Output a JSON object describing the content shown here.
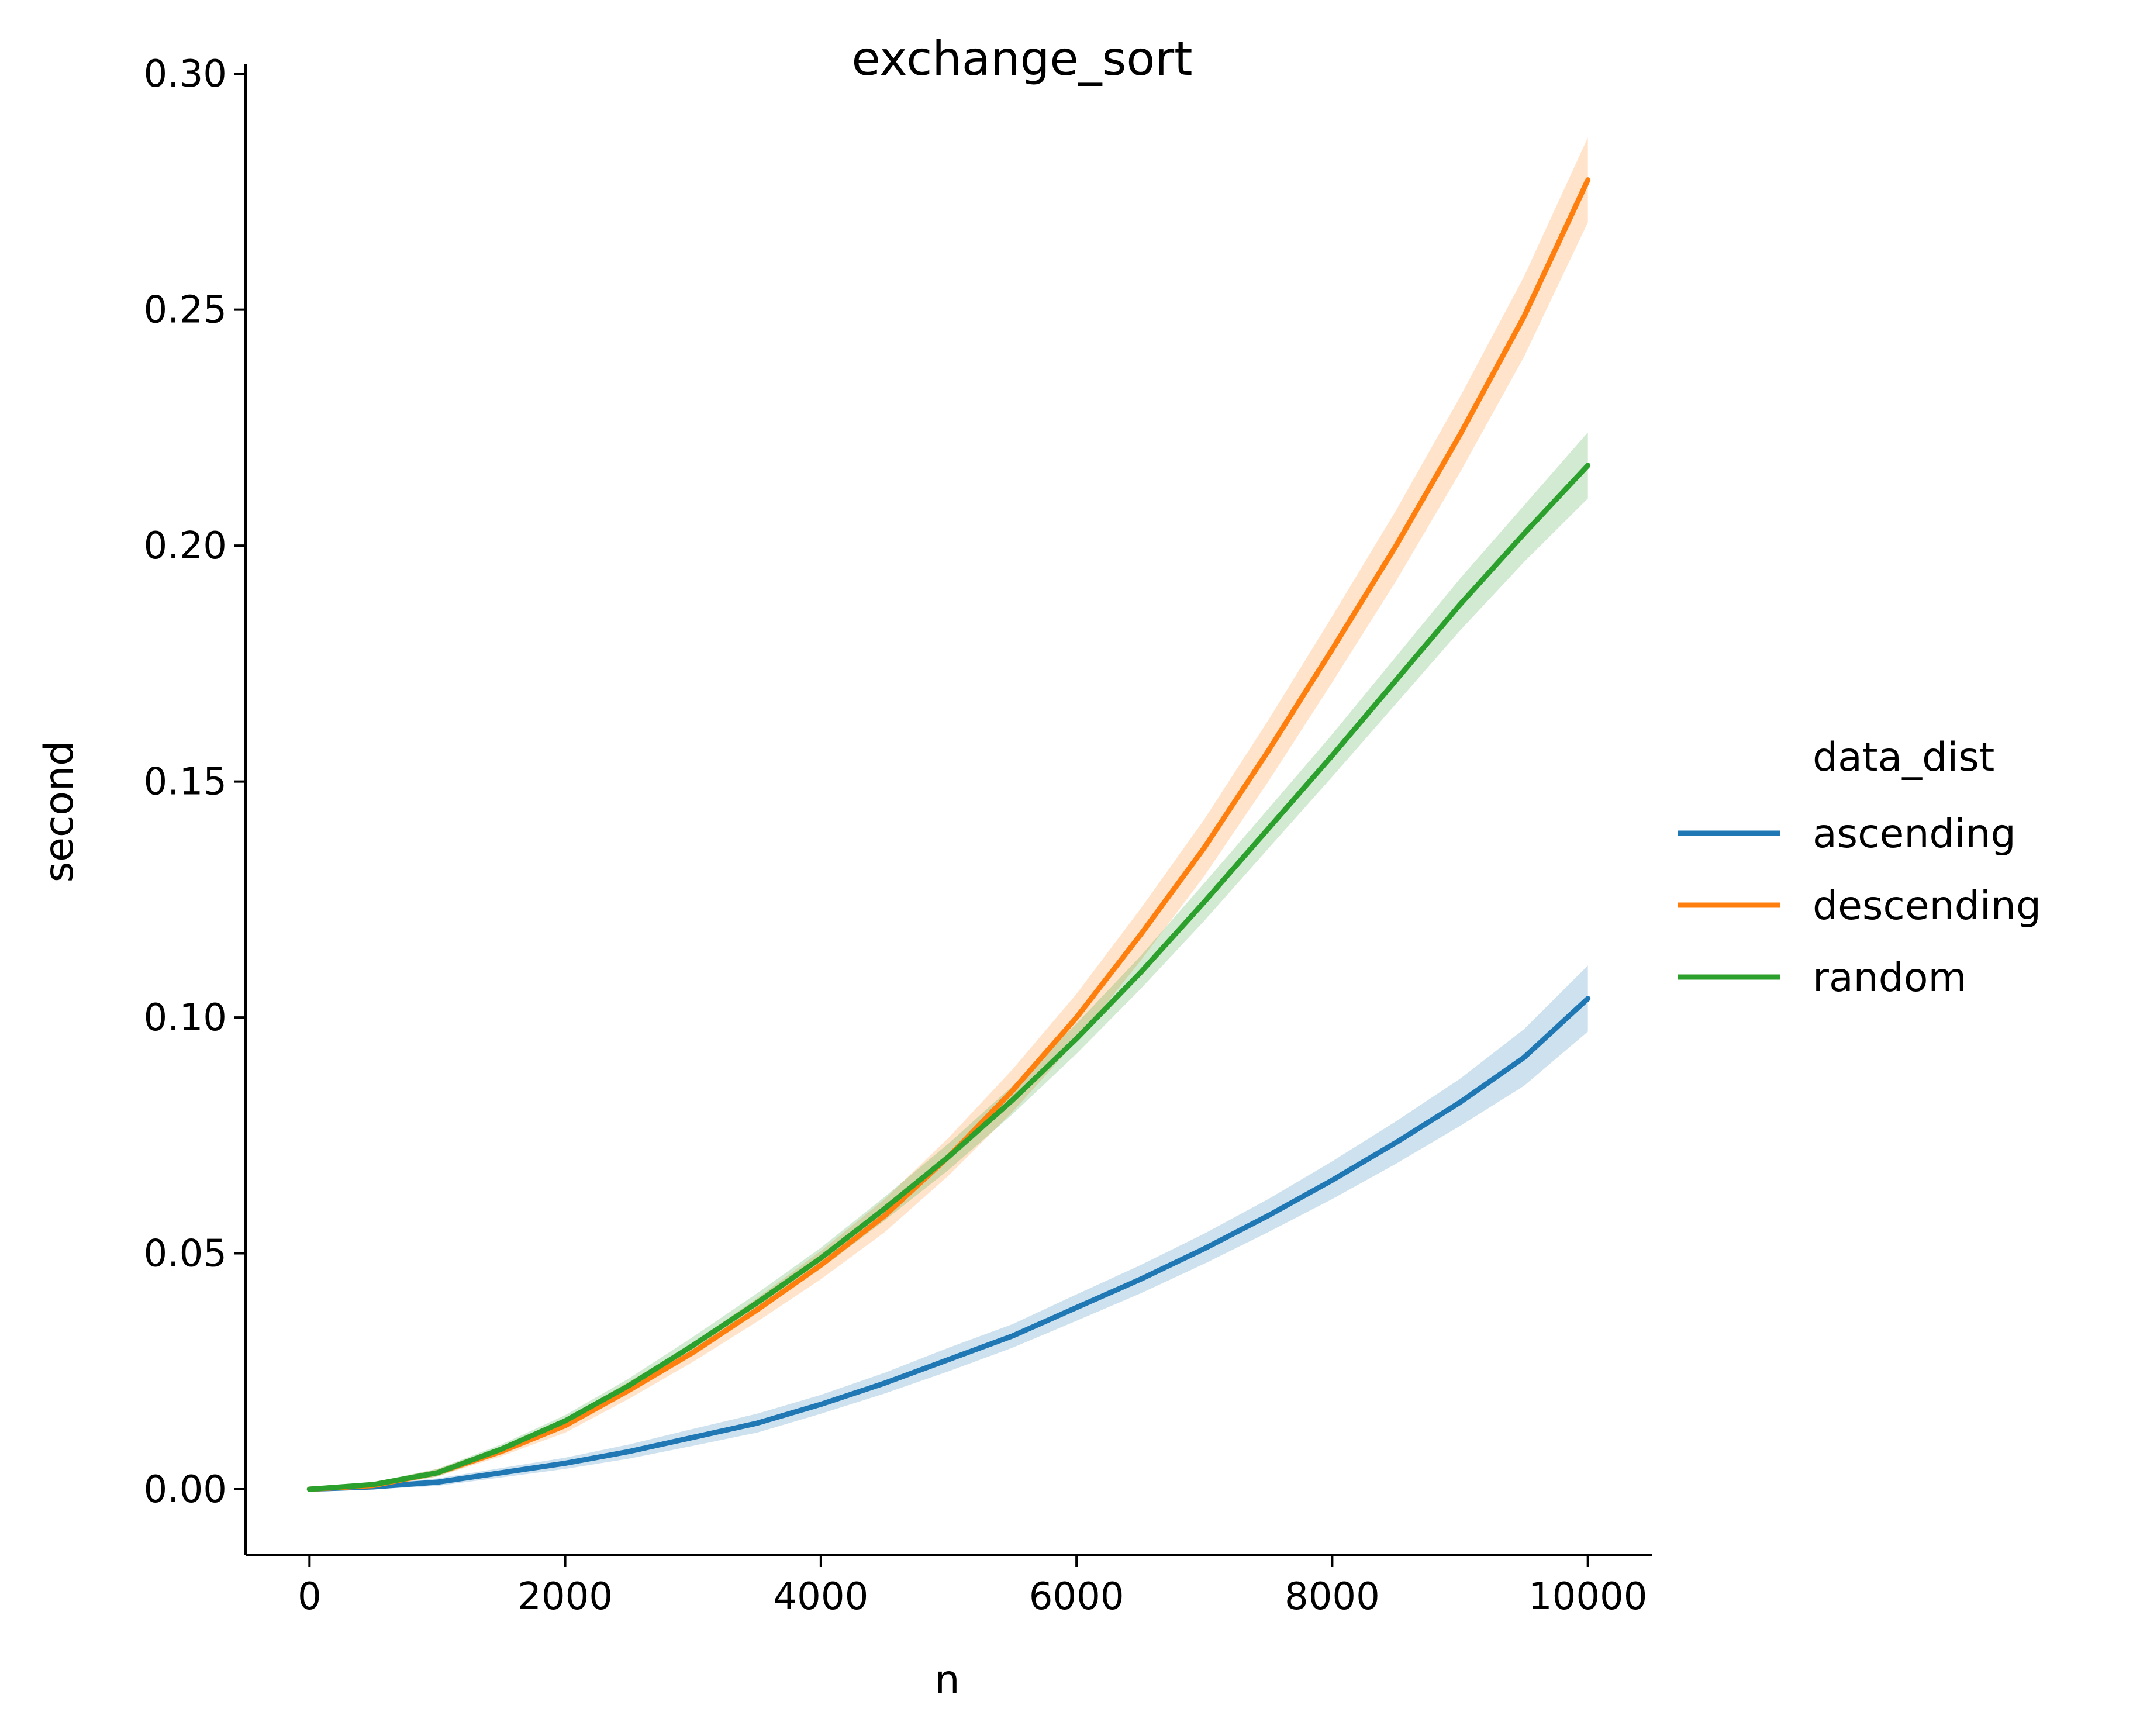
{
  "chart_data": {
    "type": "line",
    "title": "exchange_sort",
    "xlabel": "n",
    "ylabel": "second",
    "xlim": [
      -500,
      10500
    ],
    "ylim": [
      -0.014,
      0.302
    ],
    "xticks": [
      0,
      2000,
      4000,
      6000,
      8000,
      10000
    ],
    "xtick_labels": [
      "0",
      "2000",
      "4000",
      "6000",
      "8000",
      "10000"
    ],
    "yticks": [
      0.0,
      0.05,
      0.1,
      0.15,
      0.2,
      0.25,
      0.3
    ],
    "ytick_labels": [
      "0.00",
      "0.05",
      "0.10",
      "0.15",
      "0.20",
      "0.25",
      "0.30"
    ],
    "grid": false,
    "legend": {
      "title": "data_dist",
      "placement": "right-outside"
    },
    "x": [
      0,
      500,
      1000,
      1500,
      2000,
      2500,
      3000,
      3500,
      4000,
      4500,
      5000,
      5500,
      6000,
      6500,
      7000,
      7500,
      8000,
      8500,
      9000,
      9500,
      10000
    ],
    "series": [
      {
        "name": "ascending",
        "color": "#1f77b4",
        "values": [
          0.0,
          0.0005,
          0.0015,
          0.0035,
          0.0055,
          0.008,
          0.011,
          0.014,
          0.018,
          0.0225,
          0.0275,
          0.0325,
          0.0385,
          0.0445,
          0.051,
          0.058,
          0.0655,
          0.0735,
          0.082,
          0.0915,
          0.104
        ],
        "band_halfwidth": [
          0.0,
          0.0005,
          0.0008,
          0.001,
          0.0012,
          0.0015,
          0.0018,
          0.002,
          0.002,
          0.0022,
          0.0025,
          0.0025,
          0.0028,
          0.003,
          0.0032,
          0.0035,
          0.004,
          0.0045,
          0.005,
          0.006,
          0.007
        ]
      },
      {
        "name": "descending",
        "color": "#ff7f0e",
        "values": [
          0.0,
          0.0008,
          0.0035,
          0.008,
          0.0135,
          0.021,
          0.029,
          0.038,
          0.0475,
          0.058,
          0.0705,
          0.0845,
          0.1,
          0.1175,
          0.136,
          0.1565,
          0.178,
          0.2,
          0.2235,
          0.2485,
          0.2775
        ],
        "band_halfwidth": [
          0.0,
          0.0005,
          0.0008,
          0.001,
          0.0015,
          0.0018,
          0.002,
          0.0025,
          0.003,
          0.0035,
          0.004,
          0.0045,
          0.005,
          0.0055,
          0.006,
          0.0065,
          0.007,
          0.0075,
          0.008,
          0.0085,
          0.009
        ]
      },
      {
        "name": "random",
        "color": "#2ca02c",
        "values": [
          0.0,
          0.001,
          0.0035,
          0.0085,
          0.0145,
          0.022,
          0.0305,
          0.0395,
          0.049,
          0.0595,
          0.0705,
          0.0825,
          0.0955,
          0.1095,
          0.1245,
          0.14,
          0.1555,
          0.1715,
          0.1875,
          0.2025,
          0.217
        ],
        "band_halfwidth": [
          0.0,
          0.0005,
          0.0008,
          0.001,
          0.0012,
          0.0015,
          0.0018,
          0.002,
          0.0022,
          0.0025,
          0.0028,
          0.003,
          0.0032,
          0.0035,
          0.004,
          0.0042,
          0.0045,
          0.005,
          0.0055,
          0.006,
          0.007
        ]
      }
    ]
  }
}
